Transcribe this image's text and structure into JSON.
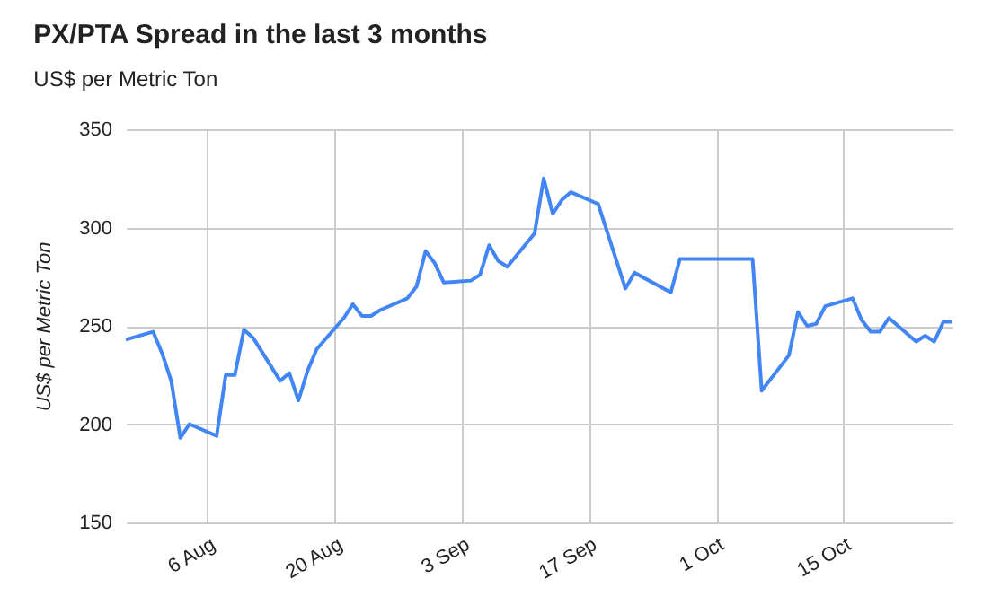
{
  "chart_data": {
    "type": "line",
    "title": "PX/PTA Spread in the last 3 months",
    "subtitle": "US$ per Metric Ton",
    "ylabel": "US$ per Metric Ton",
    "x": [
      "--07-28",
      "--07-31",
      "--08-01",
      "--08-02",
      "--08-03",
      "--08-04",
      "--08-07",
      "--08-08",
      "--08-09",
      "--08-10",
      "--08-11",
      "--08-14",
      "--08-15",
      "--08-16",
      "--08-17",
      "--08-18",
      "--08-21",
      "--08-22",
      "--08-23",
      "--08-24",
      "--08-25",
      "--08-28",
      "--08-29",
      "--08-30",
      "--08-31",
      "--09-01",
      "--09-04",
      "--09-05",
      "--09-06",
      "--09-07",
      "--09-08",
      "--09-11",
      "--09-12",
      "--09-13",
      "--09-14",
      "--09-15",
      "--09-18",
      "--09-21",
      "--09-22",
      "--09-26",
      "--09-27",
      "--10-05",
      "--10-06",
      "--10-09",
      "--10-10",
      "--10-11",
      "--10-12",
      "--10-13",
      "--10-16",
      "--10-17",
      "--10-18",
      "--10-19",
      "--10-20",
      "--10-23",
      "--10-24",
      "--10-25",
      "--10-26",
      "--10-27"
    ],
    "series": [
      {
        "color": "#4285f4",
        "values": [
          243,
          247,
          236,
          222,
          193,
          200,
          194,
          225,
          225,
          248,
          244,
          222,
          226,
          212,
          227,
          238,
          254,
          261,
          255,
          255,
          258,
          264,
          270,
          288,
          282,
          272,
          273,
          276,
          291,
          283,
          280,
          297,
          325,
          307,
          314,
          318,
          312,
          269,
          277,
          267,
          284,
          284,
          217,
          235,
          257,
          250,
          251,
          260,
          264,
          253,
          247,
          247,
          254,
          242,
          245,
          242,
          252,
          252
        ]
      }
    ],
    "xlim": [
      "--07-28",
      "--10-27"
    ],
    "xticks": [
      {
        "value": "--08-06",
        "label": "6 Aug"
      },
      {
        "value": "--08-20",
        "label": "20 Aug"
      },
      {
        "value": "--09-03",
        "label": "3 Sep"
      },
      {
        "value": "--09-17",
        "label": "17 Sep"
      },
      {
        "value": "--10-01",
        "label": "1 Oct"
      },
      {
        "value": "--10-15",
        "label": "15 Oct"
      }
    ],
    "ylim": [
      150,
      350
    ],
    "yticks": [
      150,
      200,
      250,
      300,
      350
    ],
    "grid": true,
    "marker": "none",
    "line_style": "solid"
  }
}
